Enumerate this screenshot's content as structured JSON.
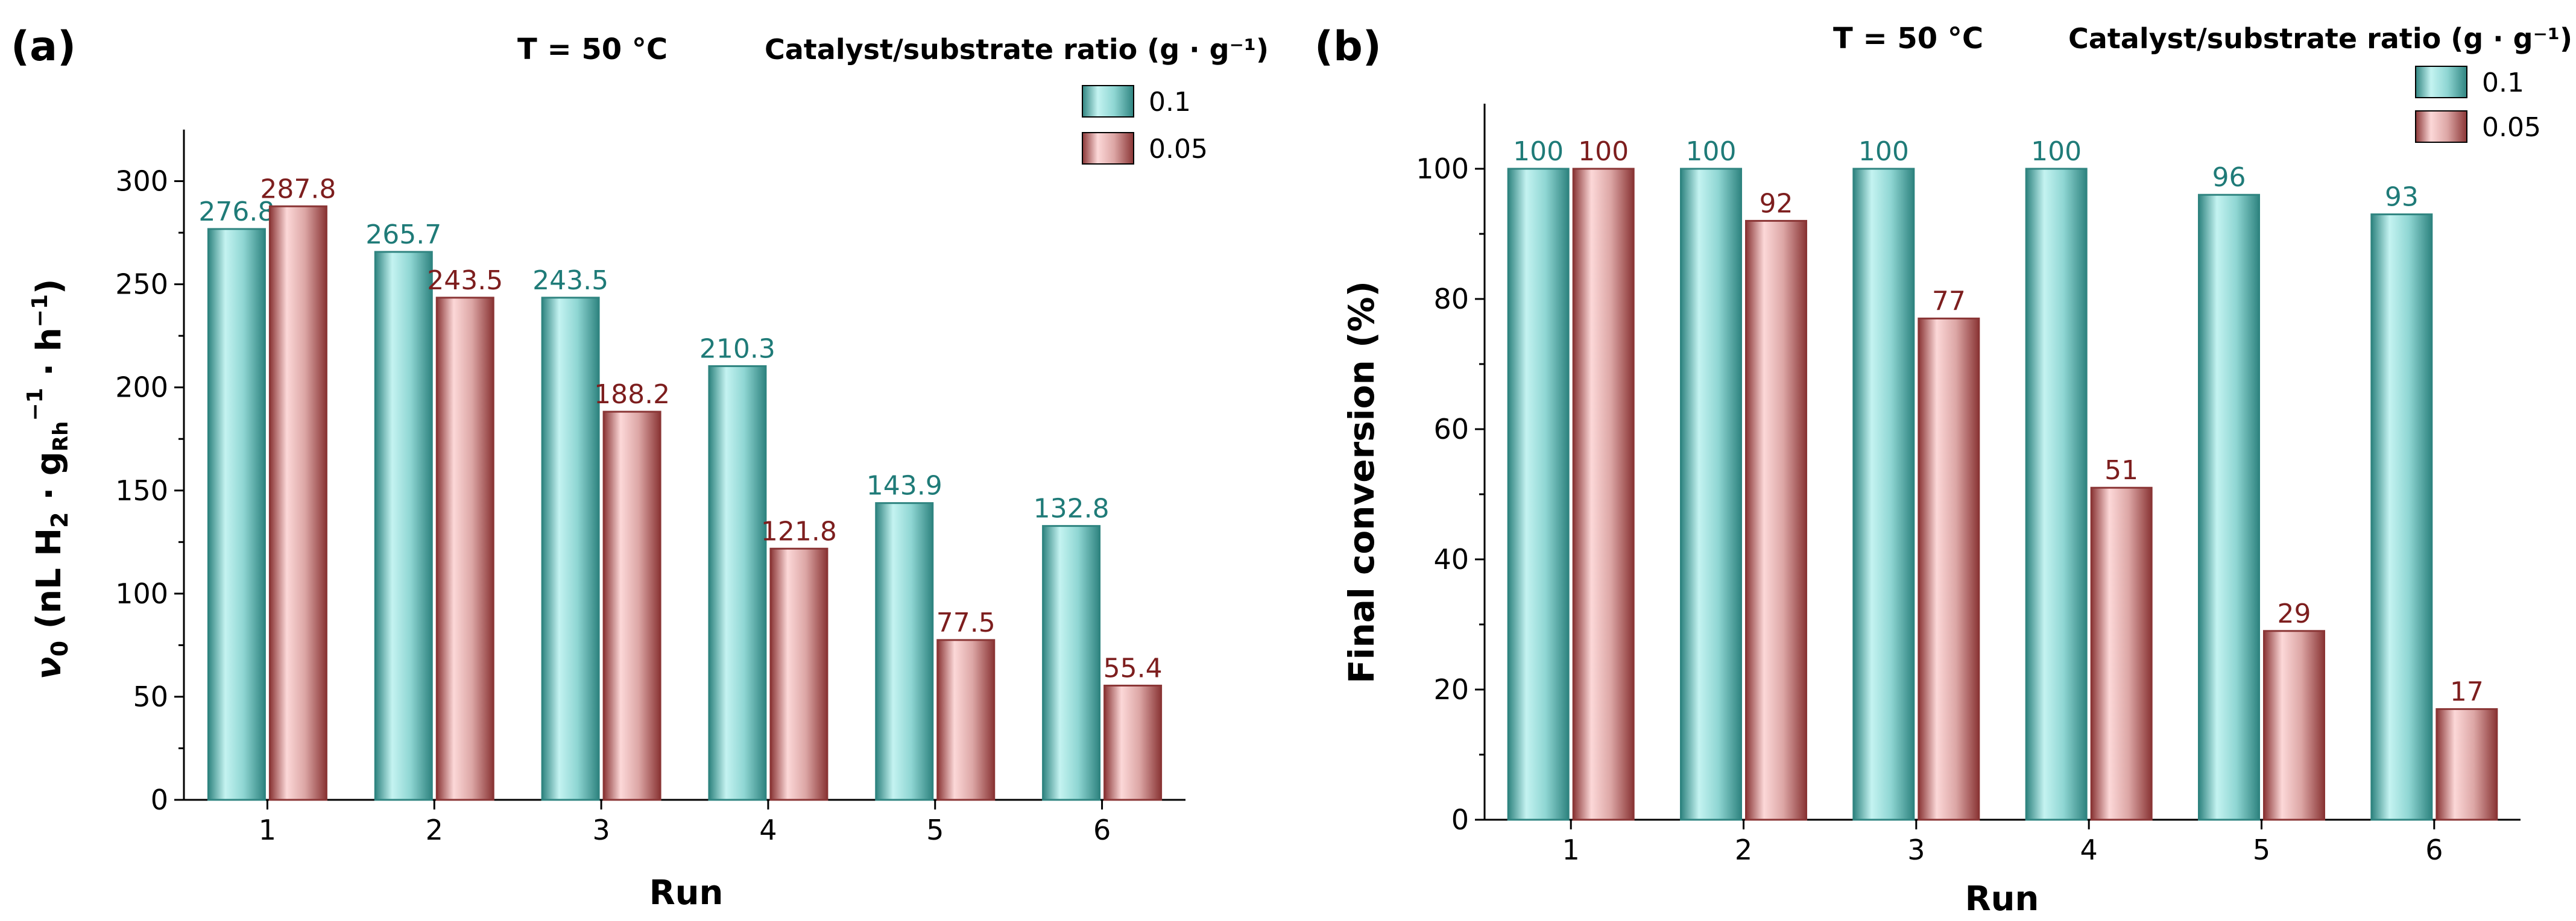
{
  "colors": {
    "teal_light": "#c4f3f1",
    "teal_mid": "#5fb8b6",
    "teal_dark": "#2f8480",
    "teal_label": "#1f7b78",
    "red_light": "#fcd8d8",
    "red_mid": "#cf9896",
    "red_dark": "#8a3535",
    "red_label": "#7d1e1e",
    "axis": "#000000"
  },
  "chart_data": [
    {
      "panel_label": "(a)",
      "type": "bar",
      "header_temperature": "T = 50 °C",
      "legend_title": "Catalyst/substrate ratio (g · g⁻¹)",
      "legend_position": "top-right",
      "categories": [
        "1",
        "2",
        "3",
        "4",
        "5",
        "6"
      ],
      "series": [
        {
          "name": "0.1",
          "values": [
            276.8,
            265.7,
            243.5,
            210.3,
            143.9,
            132.8
          ],
          "labels": [
            "276.8",
            "265.7",
            "243.5",
            "210.3",
            "143.9",
            "132.8"
          ]
        },
        {
          "name": "0.05",
          "values": [
            287.8,
            243.5,
            188.2,
            121.8,
            77.5,
            55.4
          ],
          "labels": [
            "287.8",
            "243.5",
            "188.2",
            "121.8",
            "77.5",
            "55.4"
          ]
        }
      ],
      "xlabel": "Run",
      "ylabel": {
        "nu": "ν",
        "sub0": "0",
        "pre": " (nL H",
        "sub2": "2",
        "mid": " · g",
        "subRh": "Rh",
        "sup1": "−1",
        "post": " · h",
        "sup2": "−1",
        "close": ")"
      },
      "ylim": [
        0,
        325
      ],
      "yticks": [
        "0",
        "50",
        "100",
        "150",
        "200",
        "250",
        "300"
      ],
      "ytick_values": [
        0,
        50,
        100,
        150,
        200,
        250,
        300
      ],
      "grid": false
    },
    {
      "panel_label": "(b)",
      "type": "bar",
      "header_temperature": "T = 50 °C",
      "legend_title": "Catalyst/substrate ratio (g · g⁻¹)",
      "legend_position": "top-right",
      "categories": [
        "1",
        "2",
        "3",
        "4",
        "5",
        "6"
      ],
      "series": [
        {
          "name": "0.1",
          "values": [
            100,
            100,
            100,
            100,
            96,
            93
          ],
          "labels": [
            "100",
            "100",
            "100",
            "100",
            "96",
            "93"
          ]
        },
        {
          "name": "0.05",
          "values": [
            100,
            92,
            77,
            51,
            29,
            17
          ],
          "labels": [
            "100",
            "92",
            "77",
            "51",
            "29",
            "17"
          ]
        }
      ],
      "xlabel": "Run",
      "ylabel_text": "Final conversion (%)",
      "ylim": [
        0,
        110
      ],
      "yticks": [
        "0",
        "20",
        "40",
        "60",
        "80",
        "100"
      ],
      "ytick_values": [
        0,
        20,
        40,
        60,
        80,
        100
      ],
      "grid": false
    }
  ]
}
